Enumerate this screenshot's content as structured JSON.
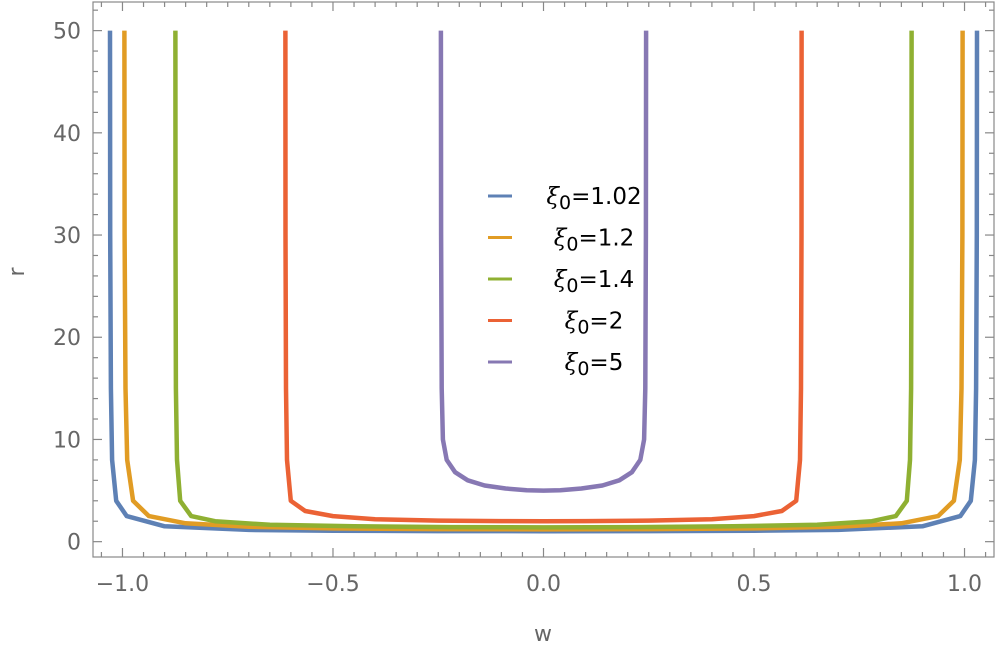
{
  "chart_data": {
    "type": "line",
    "title": "",
    "xlabel": "w",
    "ylabel": "r",
    "xlim": [
      -1.07,
      1.07
    ],
    "ylim": [
      -1.5,
      52.8
    ],
    "x_ticks": [
      -1.0,
      -0.5,
      0.0,
      0.5,
      1.0
    ],
    "x_tick_labels": [
      "−1.0",
      "−0.5",
      "0.0",
      "0.5",
      "1.0"
    ],
    "y_ticks": [
      0,
      10,
      20,
      30,
      40,
      50
    ],
    "y_tick_labels": [
      "0",
      "10",
      "20",
      "30",
      "40",
      "50"
    ],
    "grid": false,
    "legend_position": "center",
    "series": [
      {
        "name": "ξ0=1.02",
        "label_main": "ξ",
        "label_sub": "0",
        "label_rest": "=1.02",
        "xi0": 1.02,
        "color": "#5E81B5",
        "x": [
          -1.0296,
          -1.0291,
          -1.0276,
          -1.0246,
          -1.015,
          -0.99,
          -0.9,
          -0.7,
          -0.5,
          -0.25,
          0.0,
          0.25,
          0.5,
          0.7,
          0.9,
          0.99,
          1.015,
          1.0246,
          1.0276,
          1.0291,
          1.0296
        ],
        "y": [
          50,
          30,
          15,
          8,
          4,
          2.5,
          1.5,
          1.15,
          1.07,
          1.03,
          1.02,
          1.03,
          1.07,
          1.15,
          1.5,
          2.5,
          4,
          8,
          15,
          30,
          50
        ]
      },
      {
        "name": "ξ0=1.2",
        "label_main": "ξ",
        "label_sub": "0",
        "label_rest": "=1.2",
        "xi0": 1.2,
        "color": "#E19C24",
        "x": [
          -0.9955,
          -0.9949,
          -0.9929,
          -0.9887,
          -0.9747,
          -0.9372,
          -0.85,
          -0.7,
          -0.5,
          -0.25,
          0.0,
          0.25,
          0.5,
          0.7,
          0.85,
          0.9372,
          0.9747,
          0.9887,
          0.9929,
          0.9949,
          0.9955
        ],
        "y": [
          50,
          30,
          15,
          8,
          4,
          2.5,
          1.8,
          1.45,
          1.3,
          1.23,
          1.2,
          1.23,
          1.3,
          1.45,
          1.8,
          2.5,
          4,
          8,
          15,
          30,
          50
        ]
      },
      {
        "name": "ξ0=1.4",
        "label_main": "ξ",
        "label_sub": "0",
        "label_rest": "=1.4",
        "xi0": 1.4,
        "color": "#8FB032",
        "x": [
          -0.8744,
          -0.8741,
          -0.873,
          -0.8706,
          -0.8628,
          -0.8368,
          -0.78,
          -0.65,
          -0.45,
          -0.22,
          0.0,
          0.22,
          0.45,
          0.65,
          0.78,
          0.8368,
          0.8628,
          0.8706,
          0.873,
          0.8741,
          0.8744
        ],
        "y": [
          50,
          30,
          15,
          8,
          4,
          2.5,
          2.0,
          1.65,
          1.5,
          1.43,
          1.4,
          1.43,
          1.5,
          1.65,
          2.0,
          2.5,
          4,
          8,
          15,
          30,
          50
        ]
      },
      {
        "name": "ξ0=2",
        "label_main": "ξ",
        "label_sub": "0",
        "label_rest": "=2",
        "xi0": 2,
        "color": "#EB6235",
        "x": [
          -0.6131,
          -0.6127,
          -0.6115,
          -0.6092,
          -0.6003,
          -0.566,
          -0.5,
          -0.4,
          -0.25,
          -0.1,
          0.0,
          0.1,
          0.25,
          0.4,
          0.5,
          0.566,
          0.6003,
          0.6092,
          0.6115,
          0.6127,
          0.6131
        ],
        "y": [
          50,
          30,
          15,
          8,
          4,
          3.0,
          2.5,
          2.2,
          2.06,
          2.01,
          2.0,
          2.01,
          2.06,
          2.2,
          2.5,
          3.0,
          4,
          8,
          15,
          30,
          50
        ]
      },
      {
        "name": "ξ0=5",
        "label_main": "ξ",
        "label_sub": "0",
        "label_rest": "=5",
        "xi0": 5,
        "color": "#8778B3",
        "x": [
          -0.2436,
          -0.2431,
          -0.2418,
          -0.239,
          -0.23,
          -0.21,
          -0.18,
          -0.14,
          -0.09,
          -0.04,
          0.0,
          0.04,
          0.09,
          0.14,
          0.18,
          0.21,
          0.23,
          0.239,
          0.2418,
          0.2431,
          0.2436
        ],
        "y": [
          50,
          30,
          15,
          10,
          8,
          6.8,
          6.0,
          5.5,
          5.2,
          5.03,
          5.0,
          5.03,
          5.2,
          5.5,
          6.0,
          6.8,
          8,
          10,
          15,
          30,
          50
        ]
      }
    ]
  }
}
